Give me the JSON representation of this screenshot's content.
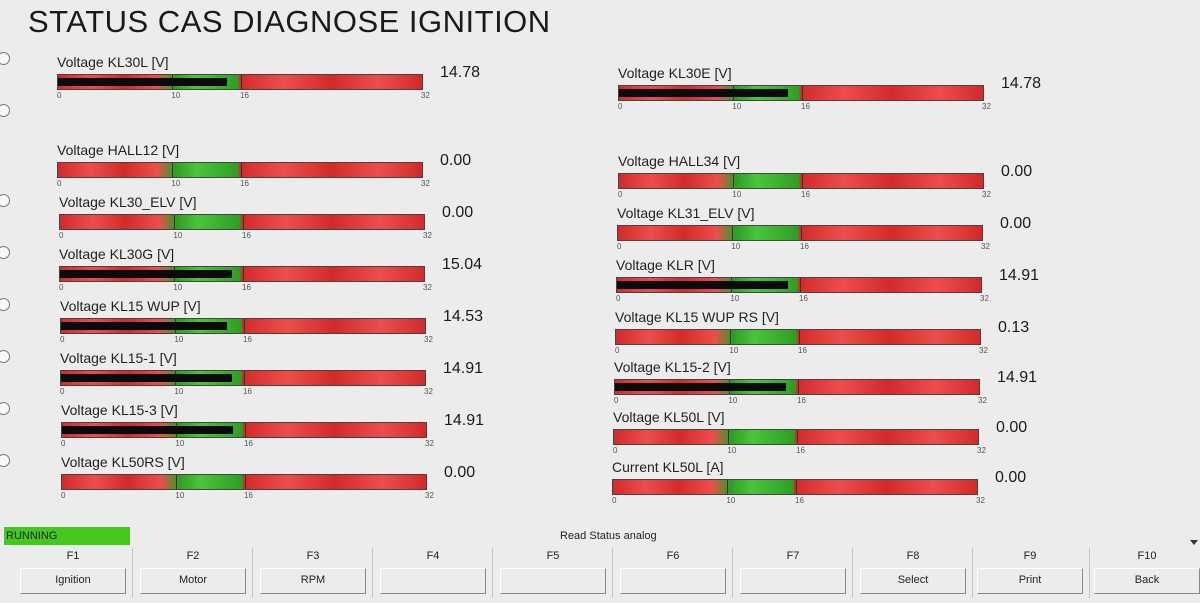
{
  "title": "STATUS CAS DIAGNOSE IGNITION",
  "scale": {
    "min": 0,
    "max": 32,
    "tick_labels": [
      "0",
      "10",
      "16",
      "32"
    ]
  },
  "colors": {
    "bar_red": "#d32a2a",
    "bar_green": "#2f9e24",
    "fill": "#0b0b0b",
    "running": "#44c81e"
  },
  "left_gauges": [
    {
      "label": "Voltage KL30L [V]",
      "value": "14.78",
      "level": 14.78
    },
    {
      "label": "Voltage HALL12 [V]",
      "value": "0.00",
      "level": 0
    },
    {
      "label": "Voltage KL30_ELV [V]",
      "value": "0.00",
      "level": 0
    },
    {
      "label": "Voltage KL30G [V]",
      "value": "15.04",
      "level": 15.04
    },
    {
      "label": "Voltage KL15 WUP [V]",
      "value": "14.53",
      "level": 14.53
    },
    {
      "label": "Voltage KL15-1 [V]",
      "value": "14.91",
      "level": 14.91
    },
    {
      "label": "Voltage KL15-3 [V]",
      "value": "14.91",
      "level": 14.91
    },
    {
      "label": "Voltage KL50RS [V]",
      "value": "0.00",
      "level": 0
    }
  ],
  "right_gauges": [
    {
      "label": "Voltage KL30E [V]",
      "value": "14.78",
      "level": 14.78
    },
    {
      "label": "Voltage HALL34 [V]",
      "value": "0.00",
      "level": 0
    },
    {
      "label": "Voltage KL31_ELV [V]",
      "value": "0.00",
      "level": 0
    },
    {
      "label": "Voltage KLR [V]",
      "value": "14.91",
      "level": 14.91
    },
    {
      "label": "Voltage KL15 WUP RS [V]",
      "value": "0.13",
      "level": 0.13
    },
    {
      "label": "Voltage KL15-2 [V]",
      "value": "14.91",
      "level": 14.91
    },
    {
      "label": "Voltage KL50L [V]",
      "value": "0.00",
      "level": 0
    },
    {
      "label": "Current KL50L [A]",
      "value": "0.00",
      "level": 0
    }
  ],
  "status": {
    "running_label": "RUNNING",
    "text": "Read Status analog"
  },
  "fkeys": [
    {
      "key": "F1",
      "label": "Ignition"
    },
    {
      "key": "F2",
      "label": "Motor"
    },
    {
      "key": "F3",
      "label": "RPM"
    },
    {
      "key": "F4",
      "label": ""
    },
    {
      "key": "F5",
      "label": ""
    },
    {
      "key": "F6",
      "label": ""
    },
    {
      "key": "F7",
      "label": ""
    },
    {
      "key": "F8",
      "label": "Select"
    },
    {
      "key": "F9",
      "label": "Print"
    },
    {
      "key": "F10",
      "label": "Back"
    }
  ]
}
